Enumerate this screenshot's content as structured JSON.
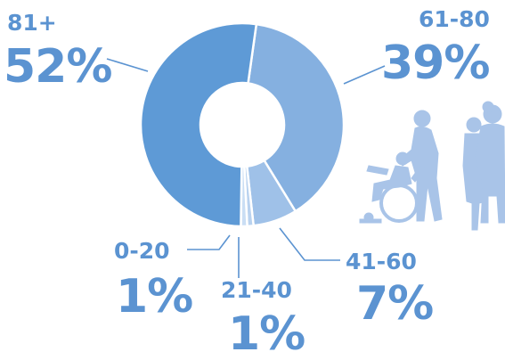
{
  "chart_data": {
    "type": "pie",
    "variant": "donut",
    "title": "",
    "categories": [
      "81+",
      "61-80",
      "41-60",
      "21-40",
      "0-20"
    ],
    "values": [
      52,
      39,
      7,
      1,
      1
    ],
    "value_labels": [
      "52%",
      "39%",
      "7%",
      "1%",
      "1%"
    ],
    "colors": [
      "#5e9ad6",
      "#85b0e0",
      "#9fc1e8",
      "#b9d2ef",
      "#cadef4"
    ],
    "label_color": "#5b93d1",
    "leader_color": "#5b93d1",
    "legend": "none"
  },
  "decoration": {
    "illustration": "people-silhouettes-icon",
    "silhouette_color": "#a9c4e8"
  }
}
